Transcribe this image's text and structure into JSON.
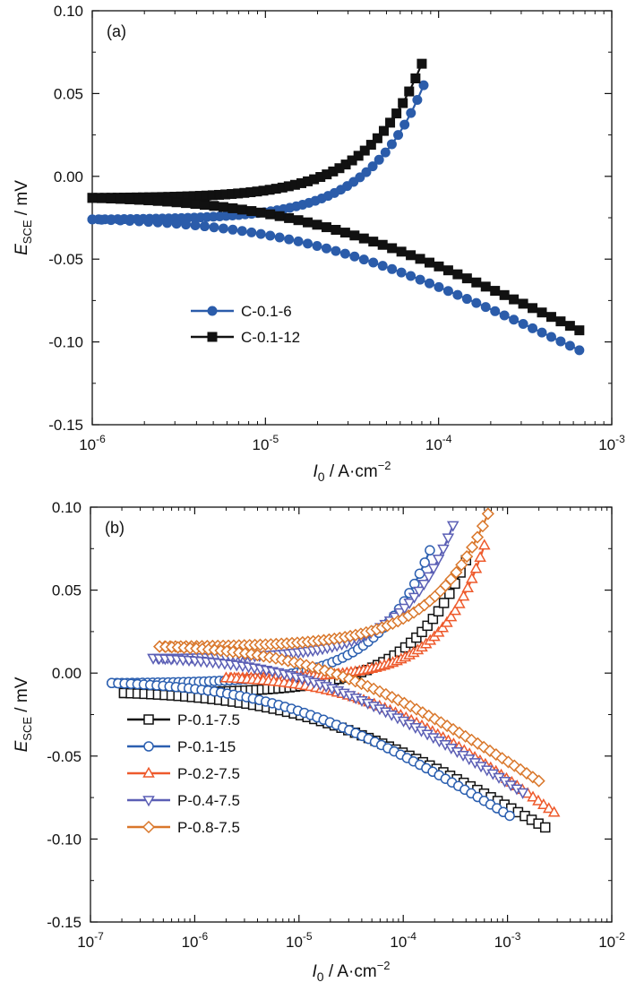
{
  "chart_data": [
    {
      "panel_label": "(a)",
      "type": "line",
      "x_scale": "log",
      "xlim": [
        1e-06,
        0.001
      ],
      "ylim": [
        -0.15,
        0.1
      ],
      "xlabel": {
        "main": "I",
        "sub": "0",
        "rest": " / A·cm",
        "sup": "−2"
      },
      "ylabel": {
        "main": "E",
        "sub": "SCE",
        "rest": " / mV"
      },
      "x_ticks": [
        {
          "base": "10",
          "exp": "-6",
          "value": 1e-06
        },
        {
          "base": "10",
          "exp": "-5",
          "value": 1e-05
        },
        {
          "base": "10",
          "exp": "-4",
          "value": 0.0001
        },
        {
          "base": "10",
          "exp": "-3",
          "value": 0.001
        }
      ],
      "y_ticks": [
        {
          "label": "0.10",
          "value": 0.1
        },
        {
          "label": "0.05",
          "value": 0.05
        },
        {
          "label": "0.00",
          "value": 0.0
        },
        {
          "label": "-0.05",
          "value": -0.05
        },
        {
          "label": "-0.10",
          "value": -0.1
        },
        {
          "label": "-0.15",
          "value": -0.15
        }
      ],
      "legend_position": "lower-left",
      "series": [
        {
          "name": "C-0.1-6",
          "color": "#2b5caa",
          "marker": "circle",
          "filled": true,
          "e_corr": -0.026,
          "x_start": 1e-06,
          "x_anodic_end": 8.2e-05,
          "e_anodic_end": 0.055,
          "x_cathodic_end": 0.00065,
          "e_cathodic_end": -0.105
        },
        {
          "name": "C-0.1-12",
          "color": "#111111",
          "marker": "square",
          "filled": true,
          "e_corr": -0.013,
          "x_start": 1e-06,
          "x_anodic_end": 8e-05,
          "e_anodic_end": 0.068,
          "x_cathodic_end": 0.00065,
          "e_cathodic_end": -0.093
        }
      ]
    },
    {
      "panel_label": "(b)",
      "type": "line",
      "x_scale": "log",
      "xlim": [
        1e-07,
        0.01
      ],
      "ylim": [
        -0.15,
        0.1
      ],
      "xlabel": {
        "main": "I",
        "sub": "0",
        "rest": " / A·cm",
        "sup": "−2"
      },
      "ylabel": {
        "main": "E",
        "sub": "SCE",
        "rest": " / mV"
      },
      "x_ticks": [
        {
          "base": "10",
          "exp": "-7",
          "value": 1e-07
        },
        {
          "base": "10",
          "exp": "-6",
          "value": 1e-06
        },
        {
          "base": "10",
          "exp": "-5",
          "value": 1e-05
        },
        {
          "base": "10",
          "exp": "-4",
          "value": 0.0001
        },
        {
          "base": "10",
          "exp": "-3",
          "value": 0.001
        },
        {
          "base": "10",
          "exp": "-2",
          "value": 0.01
        }
      ],
      "y_ticks": [
        {
          "label": "0.10",
          "value": 0.1
        },
        {
          "label": "0.05",
          "value": 0.05
        },
        {
          "label": "0.00",
          "value": 0.0
        },
        {
          "label": "-0.05",
          "value": -0.05
        },
        {
          "label": "-0.10",
          "value": -0.1
        },
        {
          "label": "-0.15",
          "value": -0.15
        }
      ],
      "legend_position": "lower-left",
      "series": [
        {
          "name": "P-0.1-7.5",
          "color": "#111111",
          "marker": "square",
          "filled": false,
          "e_corr": -0.012,
          "x_start": 2.1e-07,
          "x_anodic_end": 0.0004,
          "e_anodic_end": 0.068,
          "x_cathodic_end": 0.0023,
          "e_cathodic_end": -0.093
        },
        {
          "name": "P-0.1-15",
          "color": "#2b5fb0",
          "marker": "circle",
          "filled": false,
          "e_corr": -0.006,
          "x_start": 1.6e-07,
          "x_anodic_end": 0.00018,
          "e_anodic_end": 0.074,
          "x_cathodic_end": 0.00105,
          "e_cathodic_end": -0.086
        },
        {
          "name": "P-0.2-7.5",
          "color": "#ee5a2c",
          "marker": "triangle-up",
          "filled": false,
          "e_corr": -0.003,
          "x_start": 2e-06,
          "x_anodic_end": 0.0006,
          "e_anodic_end": 0.077,
          "x_cathodic_end": 0.0028,
          "e_cathodic_end": -0.084
        },
        {
          "name": "P-0.4-7.5",
          "color": "#5b5fb5",
          "marker": "triangle-down",
          "filled": false,
          "e_corr": 0.009,
          "x_start": 4e-07,
          "x_anodic_end": 0.0003,
          "e_anodic_end": 0.089,
          "x_cathodic_end": 0.0014,
          "e_cathodic_end": -0.072
        },
        {
          "name": "P-0.8-7.5",
          "color": "#d9772b",
          "marker": "diamond",
          "filled": false,
          "e_corr": 0.016,
          "x_start": 4.6e-07,
          "x_anodic_end": 0.00065,
          "e_anodic_end": 0.096,
          "x_cathodic_end": 0.002,
          "e_cathodic_end": -0.065
        }
      ]
    }
  ]
}
